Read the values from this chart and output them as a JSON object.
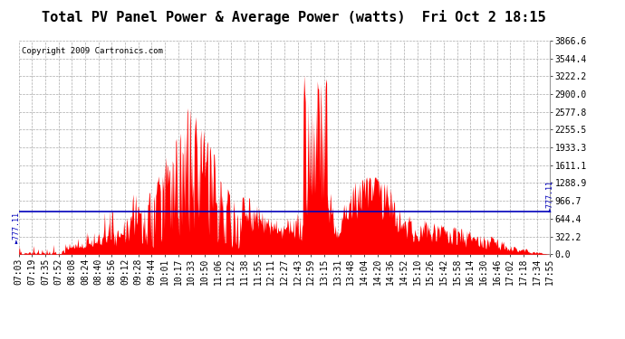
{
  "title": "Total PV Panel Power & Average Power (watts)  Fri Oct 2 18:15",
  "copyright": "Copyright 2009 Cartronics.com",
  "avg_power": 777.11,
  "y_max": 3866.6,
  "y_min": 0.0,
  "y_ticks": [
    0.0,
    322.2,
    644.4,
    966.7,
    1288.9,
    1611.1,
    1933.3,
    2255.5,
    2577.8,
    2900.0,
    3222.2,
    3544.4,
    3866.6
  ],
  "x_labels": [
    "07:03",
    "07:19",
    "07:35",
    "07:52",
    "08:08",
    "08:24",
    "08:40",
    "08:56",
    "09:12",
    "09:28",
    "09:44",
    "10:01",
    "10:17",
    "10:33",
    "10:50",
    "11:06",
    "11:22",
    "11:38",
    "11:55",
    "12:11",
    "12:27",
    "12:43",
    "12:59",
    "13:15",
    "13:31",
    "13:48",
    "14:04",
    "14:20",
    "14:36",
    "14:52",
    "15:10",
    "15:26",
    "15:42",
    "15:58",
    "16:14",
    "16:30",
    "16:46",
    "17:02",
    "17:18",
    "17:34",
    "17:55"
  ],
  "fill_color": "#FF0000",
  "line_color": "#0000BB",
  "bg_color": "#FFFFFF",
  "grid_color": "#AAAAAA",
  "title_fontsize": 11,
  "copyright_fontsize": 6.5,
  "tick_fontsize": 7
}
